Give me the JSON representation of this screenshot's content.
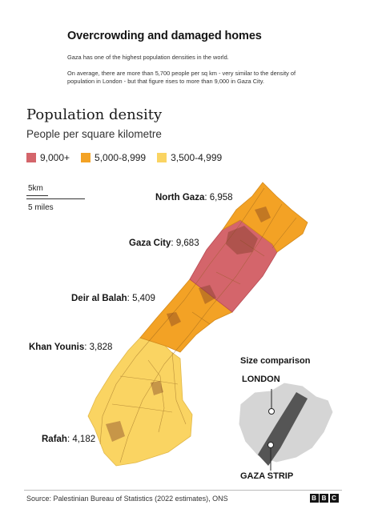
{
  "header": {
    "headline": "Overcrowding and damaged homes",
    "paragraph1": "Gaza has one of the highest population densities in the world.",
    "paragraph2": "On average, there are more than 5,700 people per sq km - very similar to the density of population in London - but that figure rises to more than 9,000 in Gaza City."
  },
  "map": {
    "title": "Population density",
    "subtitle": "People per square kilometre",
    "legend": [
      {
        "label": "9,000+",
        "color": "#d4656b"
      },
      {
        "label": "5,000-8,999",
        "color": "#f3a225"
      },
      {
        "label": "3,500-4,999",
        "color": "#fad462"
      }
    ],
    "scale": {
      "km": "5km",
      "miles": "5 miles"
    },
    "regions": [
      {
        "name": "North Gaza",
        "value": "6,958",
        "sep": ": ",
        "color": "#f3a225"
      },
      {
        "name": "Gaza City",
        "value": "9,683",
        "sep": ": ",
        "color": "#d4656b"
      },
      {
        "name": "Deir al Balah",
        "value": "5,409",
        "sep": ": ",
        "color": "#f3a225"
      },
      {
        "name": "Khan Younis",
        "value": "3,828",
        "sep": ": ",
        "color": "#fad462"
      },
      {
        "name": "Rafah",
        "value": "4,182",
        "sep": ": ",
        "color": "#fad462"
      }
    ]
  },
  "comparison": {
    "title": "Size comparison",
    "london": "LONDON",
    "gaza": "GAZA STRIP",
    "london_color": "#d5d5d5",
    "gaza_color": "#555555"
  },
  "footer": {
    "source": "Source: Palestinian Bureau of Statistics (2022 estimates), ONS",
    "logo": [
      "B",
      "B",
      "C"
    ]
  }
}
